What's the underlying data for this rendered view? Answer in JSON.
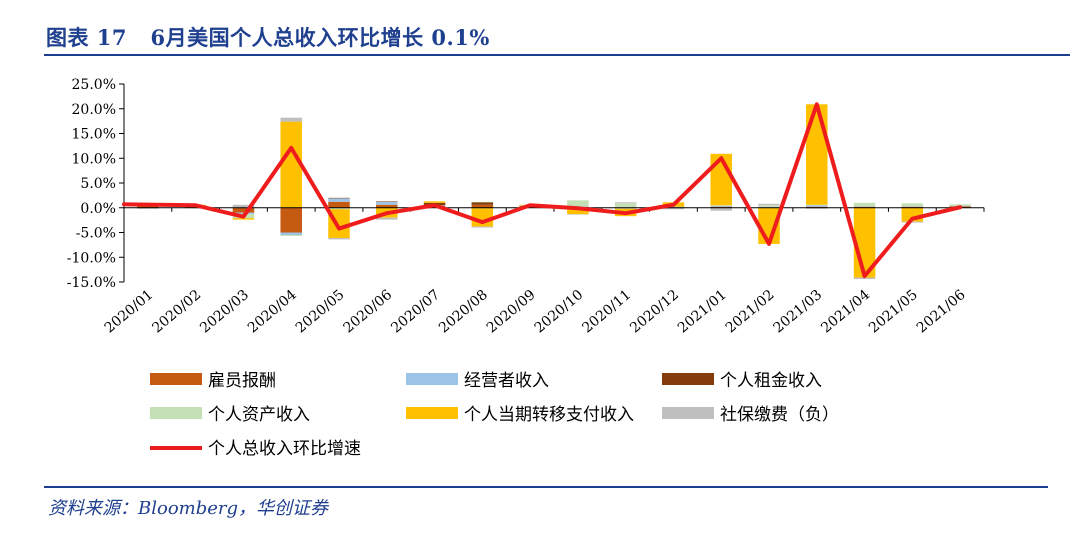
{
  "header": {
    "title": "图表 17   6月美国个人总收入环比增长 0.1%"
  },
  "footer": {
    "source": "资料来源：Bloomberg，华创证券"
  },
  "colors": {
    "title": "#1f3f8f",
    "wages": "#c55a11",
    "proprietors": "#9dc3e6",
    "rental": "#843c0c",
    "assets": "#c5e0b4",
    "transfers": "#ffc000",
    "social": "#bfbfbf",
    "total_line": "#ee1c1c"
  },
  "chart_data": {
    "type": "bar",
    "stacked": true,
    "title": "",
    "xlabel": "",
    "ylabel": "",
    "ylim": [
      -15,
      25
    ],
    "yticks": [
      -15,
      -10,
      -5,
      0,
      5,
      10,
      15,
      20,
      25
    ],
    "ytick_labels": [
      "-15.0%",
      "-10.0%",
      "-5.0%",
      "0.0%",
      "5.0%",
      "10.0%",
      "15.0%",
      "20.0%",
      "25.0%"
    ],
    "grid": false,
    "legend_position": "bottom",
    "categories": [
      "2020/01",
      "2020/02",
      "2020/03",
      "2020/04",
      "2020/05",
      "2020/06",
      "2020/07",
      "2020/08",
      "2020/09",
      "2020/10",
      "2020/11",
      "2020/12",
      "2021/01",
      "2021/02",
      "2021/03",
      "2021/04",
      "2021/05",
      "2021/06"
    ],
    "series": [
      {
        "name": "雇员报酬",
        "kind": "bar",
        "color": "#c55a11",
        "values": [
          0.3,
          0.3,
          -1.0,
          -5.0,
          1.2,
          0.6,
          0.4,
          0.6,
          0.3,
          0.2,
          -0.1,
          0.1,
          0.2,
          0.1,
          0.2,
          0.2,
          0.2,
          0.3
        ]
      },
      {
        "name": "经营者收入",
        "kind": "bar",
        "color": "#9dc3e6",
        "values": [
          0.1,
          0.0,
          -0.3,
          -0.5,
          0.7,
          0.6,
          0.1,
          -0.1,
          0.0,
          0.1,
          -0.1,
          0.1,
          0.2,
          0.1,
          0.3,
          0.1,
          0.1,
          0.1
        ]
      },
      {
        "name": "个人租金收入",
        "kind": "bar",
        "color": "#843c0c",
        "values": [
          0.1,
          0.1,
          0.0,
          0.1,
          0.1,
          0.1,
          0.5,
          0.5,
          0.1,
          0.0,
          0.0,
          0.0,
          0.0,
          0.0,
          0.0,
          0.0,
          0.0,
          0.0
        ]
      },
      {
        "name": "个人资产收入",
        "kind": "bar",
        "color": "#c5e0b4",
        "values": [
          0.2,
          0.1,
          -0.8,
          -0.2,
          -0.3,
          0.0,
          0.0,
          0.1,
          0.1,
          1.2,
          0.9,
          0.0,
          0.1,
          0.3,
          0.1,
          0.7,
          0.6,
          0.3
        ]
      },
      {
        "name": "个人当期转移支付收入",
        "kind": "bar",
        "color": "#ffc000",
        "values": [
          0.2,
          0.1,
          -0.3,
          17.3,
          -5.8,
          -2.0,
          0.3,
          -3.7,
          0.1,
          -1.3,
          -1.5,
          0.9,
          10.4,
          -7.3,
          20.3,
          -14.1,
          -2.8,
          0.0
        ]
      },
      {
        "name": "社保缴费（负）",
        "kind": "bar",
        "color": "#bfbfbf",
        "values": [
          -0.2,
          -0.1,
          0.6,
          0.8,
          -0.3,
          -0.4,
          0.0,
          -0.2,
          0.0,
          -0.1,
          0.2,
          -0.3,
          -0.6,
          0.3,
          -0.2,
          -0.3,
          -0.2,
          0.0
        ]
      },
      {
        "name": "个人总收入环比增速",
        "kind": "line",
        "color": "#ee1c1c",
        "values": [
          0.7,
          0.5,
          -1.8,
          12.1,
          -4.2,
          -1.1,
          0.5,
          -2.9,
          0.5,
          -0.1,
          -1.1,
          0.6,
          10.0,
          -7.3,
          20.9,
          -13.8,
          -2.2,
          0.1
        ]
      }
    ]
  }
}
